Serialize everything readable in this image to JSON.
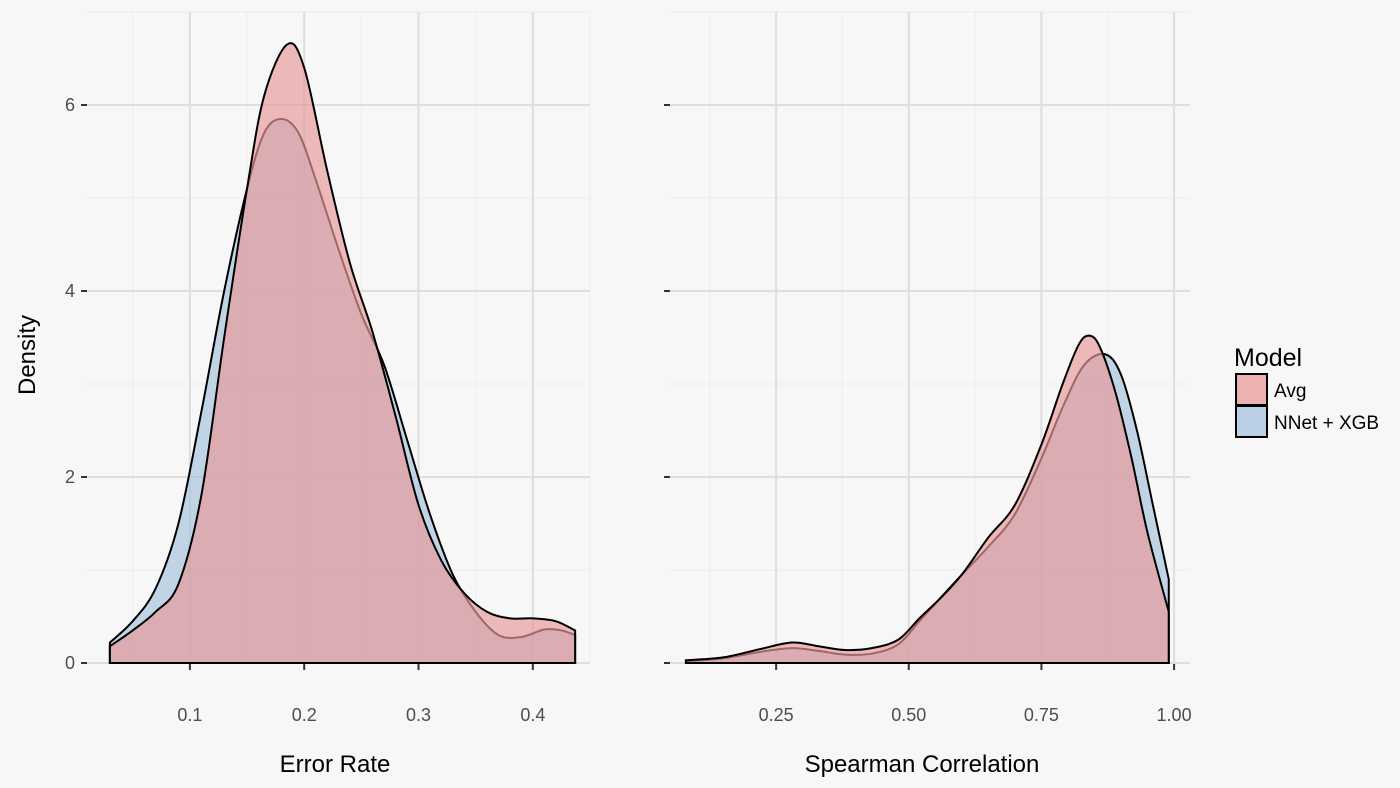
{
  "chart_data": [
    {
      "type": "area",
      "panel": "left",
      "xlabel": "Error Rate",
      "ylabel": "Density",
      "xlim": [
        0.01,
        0.45
      ],
      "ylim": [
        0,
        7
      ],
      "xticks": [
        0.1,
        0.2,
        0.3,
        0.4
      ],
      "xtick_labels": [
        "0.1",
        "0.2",
        "0.3",
        "0.4"
      ],
      "yticks": [
        0,
        2,
        4,
        6
      ],
      "ytick_labels": [
        "0",
        "2",
        "4",
        "6"
      ],
      "grid": true,
      "series": [
        {
          "name": "NNet + XGB",
          "color": "#a6c2dc",
          "points": [
            [
              0.03,
              0.22
            ],
            [
              0.05,
              0.45
            ],
            [
              0.07,
              0.8
            ],
            [
              0.09,
              1.5
            ],
            [
              0.11,
              2.7
            ],
            [
              0.13,
              4.0
            ],
            [
              0.15,
              5.1
            ],
            [
              0.165,
              5.7
            ],
            [
              0.18,
              5.85
            ],
            [
              0.195,
              5.7
            ],
            [
              0.21,
              5.2
            ],
            [
              0.23,
              4.45
            ],
            [
              0.25,
              3.75
            ],
            [
              0.27,
              3.2
            ],
            [
              0.29,
              2.4
            ],
            [
              0.31,
              1.6
            ],
            [
              0.33,
              0.95
            ],
            [
              0.35,
              0.55
            ],
            [
              0.37,
              0.3
            ],
            [
              0.39,
              0.28
            ],
            [
              0.41,
              0.36
            ],
            [
              0.425,
              0.35
            ],
            [
              0.437,
              0.3
            ]
          ]
        },
        {
          "name": "Avg",
          "color": "#e89a9a",
          "points": [
            [
              0.03,
              0.18
            ],
            [
              0.05,
              0.35
            ],
            [
              0.07,
              0.55
            ],
            [
              0.09,
              0.85
            ],
            [
              0.11,
              1.8
            ],
            [
              0.13,
              3.5
            ],
            [
              0.15,
              5.1
            ],
            [
              0.165,
              6.1
            ],
            [
              0.185,
              6.65
            ],
            [
              0.2,
              6.4
            ],
            [
              0.22,
              5.3
            ],
            [
              0.24,
              4.3
            ],
            [
              0.26,
              3.55
            ],
            [
              0.28,
              2.65
            ],
            [
              0.3,
              1.7
            ],
            [
              0.32,
              1.1
            ],
            [
              0.34,
              0.75
            ],
            [
              0.36,
              0.55
            ],
            [
              0.38,
              0.48
            ],
            [
              0.4,
              0.48
            ],
            [
              0.42,
              0.45
            ],
            [
              0.437,
              0.35
            ]
          ]
        }
      ]
    },
    {
      "type": "area",
      "panel": "right",
      "xlabel": "Spearman Correlation",
      "xlim": [
        0.05,
        1.03
      ],
      "ylim": [
        0,
        7
      ],
      "xticks": [
        0.25,
        0.5,
        0.75,
        1.0
      ],
      "xtick_labels": [
        "0.25",
        "0.50",
        "0.75",
        "1.00"
      ],
      "yticks": [
        0,
        2,
        4,
        6
      ],
      "grid": true,
      "series": [
        {
          "name": "NNet + XGB",
          "color": "#a6c2dc",
          "points": [
            [
              0.08,
              0.02
            ],
            [
              0.15,
              0.05
            ],
            [
              0.22,
              0.12
            ],
            [
              0.28,
              0.16
            ],
            [
              0.33,
              0.13
            ],
            [
              0.38,
              0.09
            ],
            [
              0.43,
              0.1
            ],
            [
              0.48,
              0.2
            ],
            [
              0.52,
              0.45
            ],
            [
              0.56,
              0.7
            ],
            [
              0.6,
              0.95
            ],
            [
              0.65,
              1.25
            ],
            [
              0.7,
              1.6
            ],
            [
              0.75,
              2.2
            ],
            [
              0.79,
              2.75
            ],
            [
              0.83,
              3.2
            ],
            [
              0.87,
              3.32
            ],
            [
              0.9,
              3.1
            ],
            [
              0.93,
              2.5
            ],
            [
              0.96,
              1.7
            ],
            [
              0.99,
              0.9
            ]
          ]
        },
        {
          "name": "Avg",
          "color": "#e89a9a",
          "points": [
            [
              0.08,
              0.03
            ],
            [
              0.15,
              0.06
            ],
            [
              0.22,
              0.15
            ],
            [
              0.28,
              0.22
            ],
            [
              0.33,
              0.18
            ],
            [
              0.38,
              0.14
            ],
            [
              0.43,
              0.16
            ],
            [
              0.48,
              0.25
            ],
            [
              0.52,
              0.48
            ],
            [
              0.56,
              0.7
            ],
            [
              0.6,
              0.95
            ],
            [
              0.65,
              1.35
            ],
            [
              0.7,
              1.7
            ],
            [
              0.75,
              2.35
            ],
            [
              0.79,
              3.0
            ],
            [
              0.82,
              3.42
            ],
            [
              0.84,
              3.52
            ],
            [
              0.86,
              3.4
            ],
            [
              0.89,
              2.9
            ],
            [
              0.92,
              2.2
            ],
            [
              0.95,
              1.4
            ],
            [
              0.99,
              0.55
            ]
          ]
        }
      ]
    }
  ],
  "legend": {
    "title": "Model",
    "items": [
      {
        "label": "Avg",
        "color": "#e89a9a"
      },
      {
        "label": "NNet + XGB",
        "color": "#a6c2dc"
      }
    ]
  }
}
